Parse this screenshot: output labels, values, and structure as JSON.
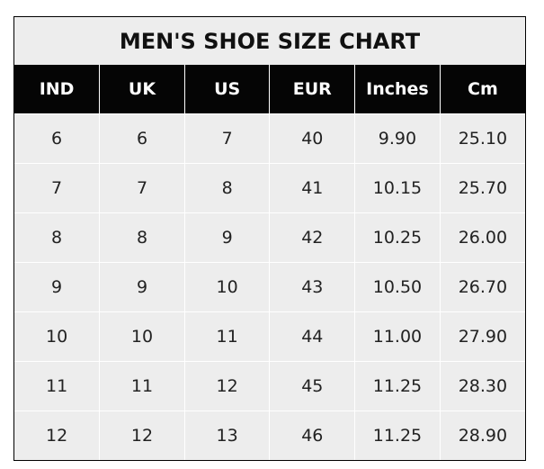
{
  "chart_data": {
    "type": "table",
    "title": "MEN'S SHOE SIZE CHART",
    "columns": [
      "IND",
      "UK",
      "US",
      "EUR",
      "Inches",
      "Cm"
    ],
    "rows": [
      [
        "6",
        "6",
        "7",
        "40",
        "9.90",
        "25.10"
      ],
      [
        "7",
        "7",
        "8",
        "41",
        "10.15",
        "25.70"
      ],
      [
        "8",
        "8",
        "9",
        "42",
        "10.25",
        "26.00"
      ],
      [
        "9",
        "9",
        "10",
        "43",
        "10.50",
        "26.70"
      ],
      [
        "10",
        "10",
        "11",
        "44",
        "11.00",
        "27.90"
      ],
      [
        "11",
        "11",
        "12",
        "45",
        "11.25",
        "28.30"
      ],
      [
        "12",
        "12",
        "13",
        "46",
        "11.25",
        "28.90"
      ]
    ]
  },
  "colors": {
    "header_bg": "#050505",
    "header_text": "#ffffff",
    "cell_bg": "#ededed"
  }
}
